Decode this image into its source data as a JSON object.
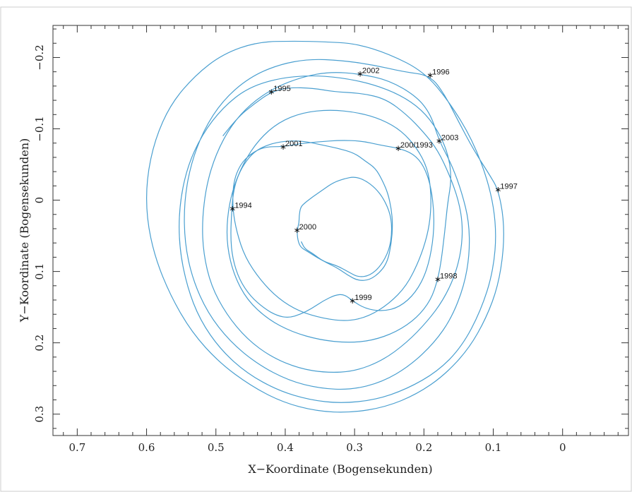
{
  "chart_data": {
    "type": "line",
    "xlabel": "X−Koordinate (Bogensekunden)",
    "ylabel": "Y−Koordinate (Bogensekunden)",
    "xlim": [
      0.735,
      -0.095
    ],
    "ylim": [
      -0.245,
      0.33
    ],
    "x_inverted": true,
    "y_inverted": true,
    "grid": false,
    "x_ticks": [
      {
        "value": 0.7,
        "label": "0.7"
      },
      {
        "value": 0.6,
        "label": "0.6"
      },
      {
        "value": 0.5,
        "label": "0.5"
      },
      {
        "value": 0.4,
        "label": "0.4"
      },
      {
        "value": 0.3,
        "label": "0.3"
      },
      {
        "value": 0.2,
        "label": "0.2"
      },
      {
        "value": 0.1,
        "label": "0.1"
      },
      {
        "value": 0.0,
        "label": "0"
      }
    ],
    "y_ticks": [
      {
        "value": -0.2,
        "label": "−0.2"
      },
      {
        "value": -0.1,
        "label": "−0.1"
      },
      {
        "value": 0.0,
        "label": "0"
      },
      {
        "value": 0.1,
        "label": "0.1"
      },
      {
        "value": 0.2,
        "label": "0.2"
      },
      {
        "value": 0.3,
        "label": "0.3"
      }
    ],
    "line_color": "#4a9fd0",
    "annotations": [
      {
        "label": "1994",
        "x": 0.476,
        "y": 0.012
      },
      {
        "label": "1995",
        "x": 0.42,
        "y": -0.152
      },
      {
        "label": "1996",
        "x": 0.191,
        "y": -0.175
      },
      {
        "label": "1997",
        "x": 0.093,
        "y": -0.015
      },
      {
        "label": "1998",
        "x": 0.18,
        "y": 0.111
      },
      {
        "label": "1999",
        "x": 0.303,
        "y": 0.141
      },
      {
        "label": "2000",
        "x": 0.383,
        "y": 0.042
      },
      {
        "label": "2001",
        "x": 0.403,
        "y": -0.075
      },
      {
        "label": "2002",
        "x": 0.292,
        "y": -0.177
      },
      {
        "label": "2003",
        "x": 0.178,
        "y": -0.083
      },
      {
        "label": "200/1993",
        "x": 0.237,
        "y": -0.073
      }
    ],
    "series": [
      {
        "points": [
          [
            0.49,
            -0.09
          ],
          [
            0.47,
            -0.115
          ],
          [
            0.445,
            -0.135
          ],
          [
            0.42,
            -0.152
          ],
          [
            0.395,
            -0.158
          ],
          [
            0.36,
            -0.157
          ],
          [
            0.33,
            -0.152
          ],
          [
            0.29,
            -0.15
          ],
          [
            0.255,
            -0.142
          ],
          [
            0.225,
            -0.12
          ],
          [
            0.2,
            -0.095
          ],
          [
            0.18,
            -0.07
          ],
          [
            0.163,
            -0.035
          ],
          [
            0.15,
            0.0
          ],
          [
            0.144,
            0.035
          ],
          [
            0.146,
            0.07
          ],
          [
            0.155,
            0.105
          ],
          [
            0.172,
            0.14
          ],
          [
            0.195,
            0.17
          ],
          [
            0.225,
            0.2
          ],
          [
            0.26,
            0.225
          ],
          [
            0.3,
            0.24
          ],
          [
            0.34,
            0.242
          ],
          [
            0.38,
            0.236
          ],
          [
            0.42,
            0.22
          ],
          [
            0.455,
            0.195
          ],
          [
            0.485,
            0.16
          ],
          [
            0.507,
            0.12
          ],
          [
            0.518,
            0.075
          ],
          [
            0.52,
            0.03
          ],
          [
            0.514,
            -0.02
          ],
          [
            0.5,
            -0.065
          ],
          [
            0.478,
            -0.105
          ],
          [
            0.45,
            -0.135
          ],
          [
            0.415,
            -0.158
          ],
          [
            0.375,
            -0.173
          ],
          [
            0.335,
            -0.18
          ],
          [
            0.292,
            -0.177
          ],
          [
            0.25,
            -0.168
          ],
          [
            0.21,
            -0.145
          ],
          [
            0.19,
            -0.12
          ],
          [
            0.178,
            -0.083
          ],
          [
            0.16,
            -0.05
          ],
          [
            0.145,
            -0.01
          ],
          [
            0.135,
            0.03
          ],
          [
            0.134,
            0.075
          ],
          [
            0.142,
            0.12
          ],
          [
            0.16,
            0.165
          ],
          [
            0.185,
            0.2
          ],
          [
            0.22,
            0.232
          ],
          [
            0.26,
            0.255
          ],
          [
            0.305,
            0.266
          ],
          [
            0.35,
            0.264
          ],
          [
            0.395,
            0.253
          ],
          [
            0.44,
            0.23
          ],
          [
            0.48,
            0.198
          ],
          [
            0.512,
            0.158
          ],
          [
            0.534,
            0.11
          ],
          [
            0.545,
            0.06
          ],
          [
            0.546,
            0.005
          ],
          [
            0.537,
            -0.048
          ],
          [
            0.518,
            -0.098
          ],
          [
            0.49,
            -0.14
          ],
          [
            0.452,
            -0.172
          ],
          [
            0.41,
            -0.19
          ],
          [
            0.365,
            -0.198
          ],
          [
            0.32,
            -0.196
          ],
          [
            0.275,
            -0.19
          ],
          [
            0.23,
            -0.18
          ],
          [
            0.191,
            -0.175
          ],
          [
            0.17,
            -0.148
          ],
          [
            0.15,
            -0.11
          ],
          [
            0.128,
            -0.07
          ],
          [
            0.105,
            -0.035
          ],
          [
            0.093,
            -0.015
          ],
          [
            0.085,
            0.025
          ],
          [
            0.085,
            0.07
          ],
          [
            0.093,
            0.12
          ],
          [
            0.11,
            0.165
          ],
          [
            0.135,
            0.208
          ],
          [
            0.17,
            0.245
          ],
          [
            0.21,
            0.272
          ],
          [
            0.255,
            0.29
          ],
          [
            0.305,
            0.298
          ],
          [
            0.355,
            0.296
          ],
          [
            0.405,
            0.283
          ],
          [
            0.45,
            0.26
          ],
          [
            0.495,
            0.228
          ],
          [
            0.535,
            0.185
          ],
          [
            0.565,
            0.135
          ],
          [
            0.588,
            0.08
          ],
          [
            0.6,
            0.025
          ],
          [
            0.6,
            -0.03
          ],
          [
            0.588,
            -0.085
          ],
          [
            0.565,
            -0.135
          ],
          [
            0.53,
            -0.175
          ],
          [
            0.49,
            -0.205
          ],
          [
            0.44,
            -0.222
          ],
          [
            0.385,
            -0.223
          ],
          [
            0.345,
            -0.222
          ],
          [
            0.3,
            -0.22
          ],
          [
            0.25,
            -0.205
          ],
          [
            0.2,
            -0.18
          ],
          [
            0.165,
            -0.14
          ],
          [
            0.13,
            -0.085
          ],
          [
            0.105,
            -0.02
          ],
          [
            0.095,
            0.04
          ],
          [
            0.1,
            0.1
          ],
          [
            0.118,
            0.155
          ],
          [
            0.145,
            0.205
          ],
          [
            0.18,
            0.24
          ],
          [
            0.225,
            0.265
          ],
          [
            0.27,
            0.28
          ],
          [
            0.32,
            0.285
          ],
          [
            0.365,
            0.28
          ],
          [
            0.41,
            0.267
          ],
          [
            0.455,
            0.243
          ],
          [
            0.493,
            0.21
          ],
          [
            0.523,
            0.168
          ],
          [
            0.542,
            0.12
          ],
          [
            0.553,
            0.065
          ],
          [
            0.553,
            0.01
          ],
          [
            0.542,
            -0.045
          ],
          [
            0.52,
            -0.092
          ],
          [
            0.49,
            -0.13
          ],
          [
            0.455,
            -0.157
          ],
          [
            0.41,
            -0.171
          ],
          [
            0.365,
            -0.175
          ],
          [
            0.32,
            -0.172
          ],
          [
            0.275,
            -0.163
          ],
          [
            0.235,
            -0.148
          ],
          [
            0.203,
            -0.127
          ],
          [
            0.18,
            -0.098
          ],
          [
            0.165,
            -0.065
          ],
          [
            0.16,
            -0.03
          ],
          [
            0.166,
            0.005
          ],
          [
            0.17,
            0.045
          ],
          [
            0.175,
            0.085
          ],
          [
            0.18,
            0.111
          ],
          [
            0.19,
            0.14
          ],
          [
            0.21,
            0.165
          ],
          [
            0.24,
            0.185
          ],
          [
            0.275,
            0.197
          ],
          [
            0.31,
            0.2
          ],
          [
            0.35,
            0.196
          ],
          [
            0.39,
            0.185
          ],
          [
            0.425,
            0.167
          ],
          [
            0.455,
            0.14
          ],
          [
            0.474,
            0.105
          ],
          [
            0.484,
            0.065
          ],
          [
            0.484,
            0.025
          ],
          [
            0.476,
            -0.015
          ],
          [
            0.46,
            -0.053
          ],
          [
            0.438,
            -0.085
          ],
          [
            0.41,
            -0.109
          ],
          [
            0.375,
            -0.123
          ],
          [
            0.335,
            -0.127
          ],
          [
            0.295,
            -0.123
          ],
          [
            0.26,
            -0.113
          ],
          [
            0.232,
            -0.097
          ],
          [
            0.21,
            -0.073
          ],
          [
            0.195,
            -0.045
          ],
          [
            0.19,
            -0.015
          ],
          [
            0.19,
            0.018
          ],
          [
            0.195,
            0.05
          ],
          [
            0.207,
            0.085
          ],
          [
            0.225,
            0.12
          ],
          [
            0.25,
            0.145
          ],
          [
            0.28,
            0.163
          ],
          [
            0.31,
            0.17
          ],
          [
            0.345,
            0.166
          ],
          [
            0.38,
            0.156
          ],
          [
            0.41,
            0.138
          ],
          [
            0.436,
            0.112
          ],
          [
            0.458,
            0.08
          ],
          [
            0.47,
            0.045
          ],
          [
            0.476,
            0.012
          ],
          [
            0.475,
            -0.025
          ],
          [
            0.465,
            -0.05
          ],
          [
            0.45,
            -0.065
          ],
          [
            0.43,
            -0.075
          ],
          [
            0.403,
            -0.075
          ],
          [
            0.38,
            -0.079
          ],
          [
            0.35,
            -0.082
          ],
          [
            0.32,
            -0.084
          ],
          [
            0.29,
            -0.083
          ],
          [
            0.262,
            -0.077
          ],
          [
            0.237,
            -0.073
          ],
          [
            0.215,
            -0.065
          ],
          [
            0.2,
            -0.048
          ],
          [
            0.19,
            -0.02
          ],
          [
            0.185,
            0.02
          ],
          [
            0.187,
            0.06
          ],
          [
            0.196,
            0.1
          ],
          [
            0.212,
            0.13
          ],
          [
            0.235,
            0.15
          ],
          [
            0.26,
            0.156
          ],
          [
            0.285,
            0.152
          ],
          [
            0.303,
            0.141
          ],
          [
            0.315,
            0.132
          ],
          [
            0.328,
            0.133
          ],
          [
            0.345,
            0.141
          ],
          [
            0.362,
            0.152
          ],
          [
            0.378,
            0.16
          ],
          [
            0.395,
            0.165
          ],
          [
            0.412,
            0.162
          ],
          [
            0.43,
            0.152
          ],
          [
            0.45,
            0.135
          ],
          [
            0.466,
            0.112
          ],
          [
            0.476,
            0.082
          ],
          [
            0.479,
            0.05
          ],
          [
            0.477,
            0.012
          ],
          [
            0.475,
            -0.01
          ],
          [
            0.47,
            -0.03
          ],
          [
            0.46,
            -0.05
          ],
          [
            0.445,
            -0.068
          ],
          [
            0.425,
            -0.078
          ],
          [
            0.4,
            -0.083
          ],
          [
            0.375,
            -0.083
          ],
          [
            0.35,
            -0.078
          ],
          [
            0.325,
            -0.073
          ],
          [
            0.3,
            -0.066
          ],
          [
            0.285,
            -0.055
          ],
          [
            0.27,
            -0.045
          ],
          [
            0.26,
            -0.028
          ],
          [
            0.252,
            -0.01
          ],
          [
            0.247,
            0.012
          ],
          [
            0.245,
            0.035
          ],
          [
            0.247,
            0.06
          ],
          [
            0.252,
            0.085
          ],
          [
            0.262,
            0.1
          ],
          [
            0.278,
            0.112
          ],
          [
            0.295,
            0.113
          ],
          [
            0.31,
            0.105
          ],
          [
            0.325,
            0.095
          ],
          [
            0.34,
            0.088
          ],
          [
            0.355,
            0.08
          ],
          [
            0.368,
            0.072
          ],
          [
            0.378,
            0.066
          ],
          [
            0.382,
            0.056
          ],
          [
            0.383,
            0.042
          ],
          [
            0.38,
            0.032
          ],
          [
            0.38,
            0.022
          ],
          [
            0.378,
            0.01
          ],
          [
            0.372,
            0.004
          ],
          [
            0.36,
            -0.005
          ],
          [
            0.345,
            -0.015
          ],
          [
            0.33,
            -0.025
          ],
          [
            0.315,
            -0.03
          ],
          [
            0.3,
            -0.033
          ],
          [
            0.285,
            -0.028
          ],
          [
            0.27,
            -0.017
          ],
          [
            0.258,
            -0.002
          ],
          [
            0.248,
            0.02
          ],
          [
            0.246,
            0.045
          ],
          [
            0.25,
            0.07
          ],
          [
            0.262,
            0.092
          ],
          [
            0.278,
            0.106
          ],
          [
            0.295,
            0.108
          ],
          [
            0.31,
            0.1
          ],
          [
            0.325,
            0.092
          ],
          [
            0.345,
            0.086
          ],
          [
            0.36,
            0.075
          ],
          [
            0.372,
            0.068
          ],
          [
            0.377,
            0.058
          ]
        ]
      }
    ]
  }
}
